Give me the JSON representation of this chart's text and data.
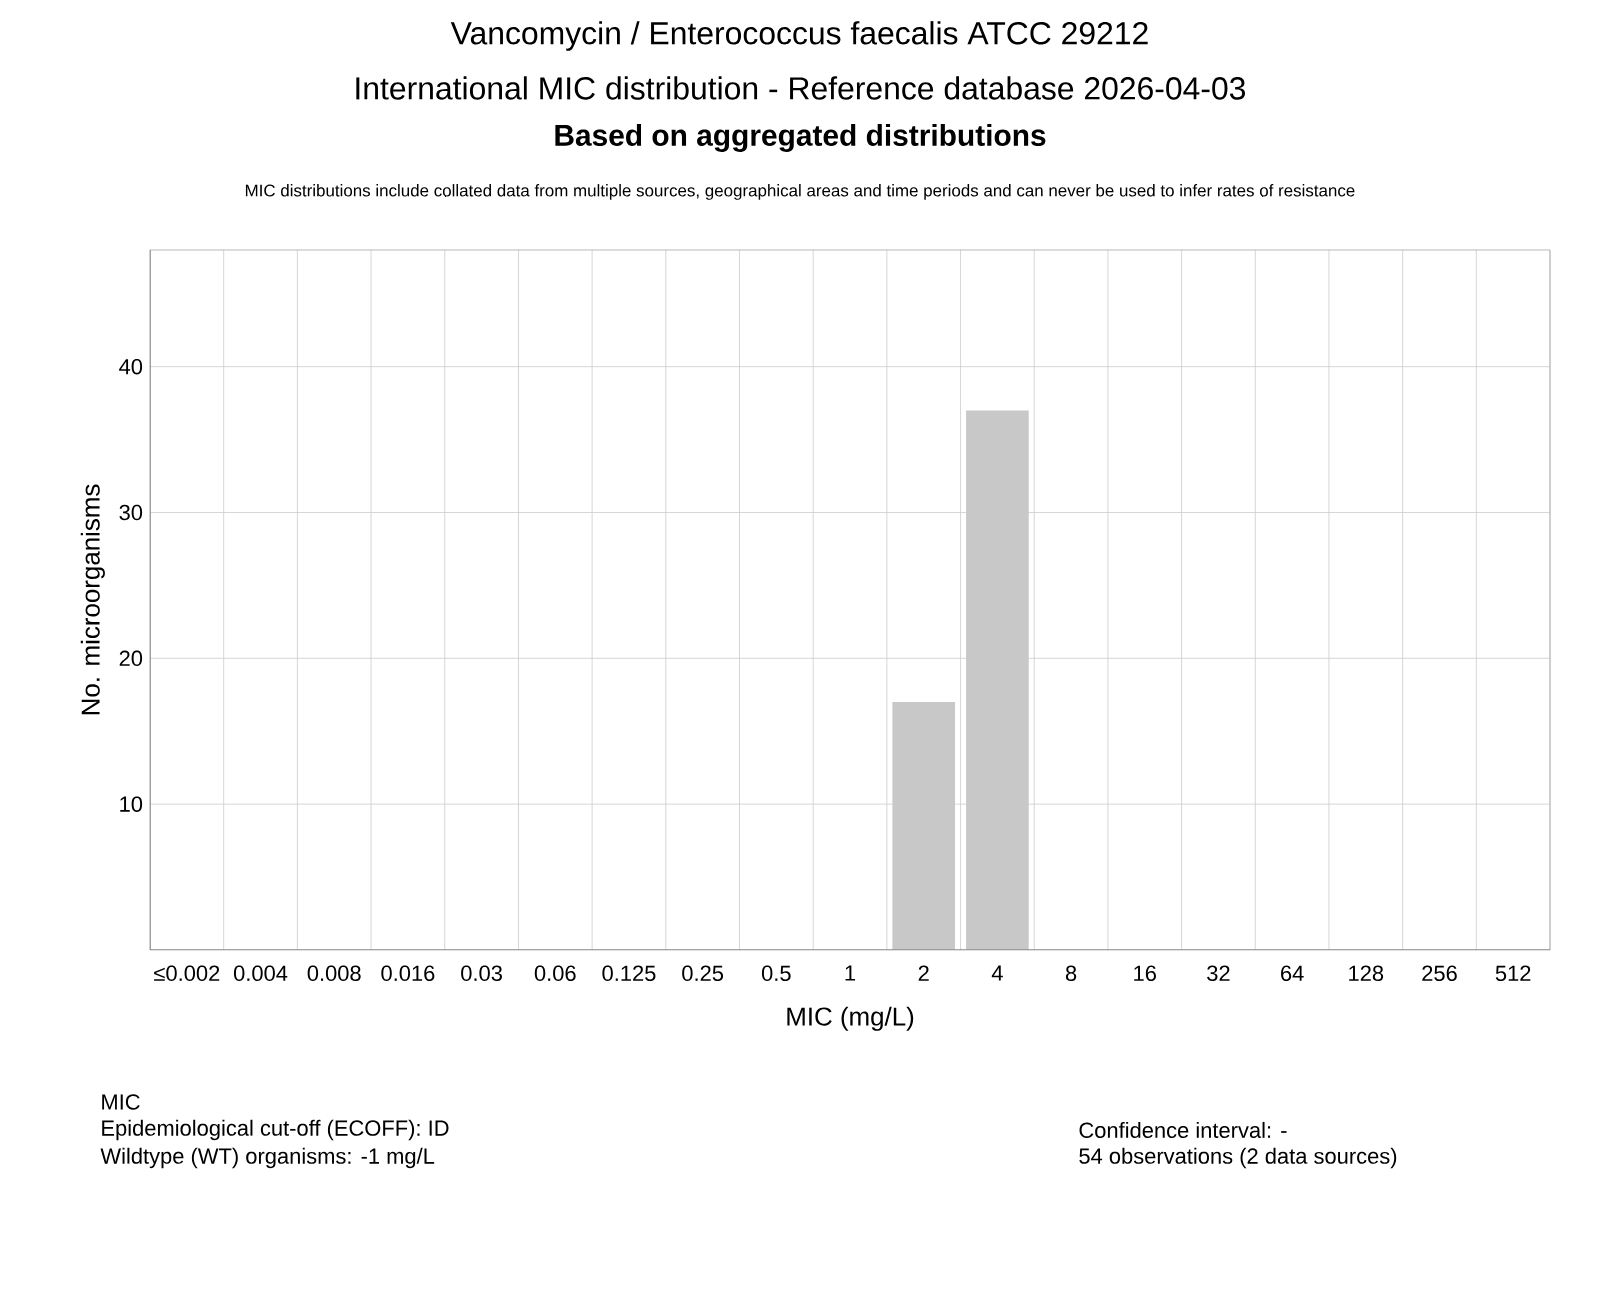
{
  "chart_data": {
    "type": "bar",
    "title": "Vancomycin / Enterococcus faecalis ATCC 29212",
    "subtitle": "International MIC distribution - Reference database 2026-04-03",
    "categories": [
      "≤0.002",
      "0.004",
      "0.008",
      "0.016",
      "0.03",
      "0.06",
      "0.125",
      "0.25",
      "0.5",
      "1",
      "2",
      "4",
      "8",
      "16",
      "32",
      "64",
      "128",
      "256",
      "512"
    ],
    "values": [
      0,
      0,
      0,
      0,
      0,
      0,
      0,
      0,
      0,
      0,
      17,
      37,
      0,
      0,
      0,
      0,
      0,
      0,
      0
    ],
    "color": "#c8c8c8",
    "ylim": [
      0,
      48
    ],
    "yticks": [
      10,
      20,
      30,
      40
    ],
    "grid": true,
    "xlabel": "MIC (mg/L)",
    "ylabel": "No. microorganisms",
    "annotations": [
      "Based on aggregated distributions",
      "MIC distributions include collated data from multiple sources, geographical areas and time periods and can never be used to infer rates of resistance",
      "MIC",
      "Epidemiological cut-off (ECOFF): ID",
      "Wildtype (WT) organisms: -1 mg/L",
      "Confidence interval: -",
      "54 observations (2 data sources)"
    ]
  }
}
